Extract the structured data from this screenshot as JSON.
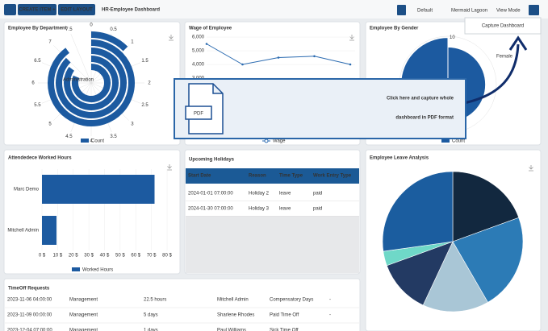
{
  "toolbar": {
    "create_item": "CREATE ITEM +",
    "edit_layout": "EDIT LAYOUT",
    "title": "HR-Employee Dashboard",
    "default": "Default",
    "theme": "Mermaid Lagoon",
    "view_mode": "View Mode",
    "capture": "Capture Dashboard"
  },
  "overlay": {
    "icon_label": "PDF",
    "lines": [
      "Click here and capture whole",
      "dashboard in PDF format"
    ]
  },
  "department_chart": {
    "type": "radialBar",
    "title": "Employee By Department",
    "label": "Administration",
    "rlim": [
      0,
      8
    ],
    "ticks": [
      0,
      0.5,
      1,
      1.5,
      2,
      2.5,
      3,
      3.5,
      4,
      4.5,
      5,
      5.5,
      6,
      6.5,
      7,
      7.5
    ],
    "values": [
      1,
      7.2,
      7,
      6.8,
      6.5
    ],
    "color": "#1c5aa0",
    "legend": "Count"
  },
  "wage_chart": {
    "type": "line",
    "title": "Wage of Employee",
    "ylim": [
      2000,
      6000
    ],
    "yticks": [
      {
        "value": 3000,
        "label": "3,000"
      },
      {
        "value": 4000,
        "label": "4,000"
      },
      {
        "value": 5000,
        "label": "5,000"
      },
      {
        "value": 6000,
        "label": "6,000"
      }
    ],
    "values": [
      5500,
      4000,
      4500,
      4600,
      4000
    ],
    "color": "#2a6ab0",
    "legend": "Wage"
  },
  "gender_chart": {
    "type": "polarArea",
    "title": "Employee By Gender",
    "categories": [
      null,
      "Female"
    ],
    "values": [
      10,
      8
    ],
    "rlim": [
      0,
      12
    ],
    "rticks": [
      10
    ],
    "color": "#1c5aa0",
    "legend": "Count"
  },
  "hours_chart": {
    "type": "barh",
    "title": "Attendedece Worked Hours",
    "categories": [
      "Marc Demo",
      "Mitchell Admin"
    ],
    "values": [
      72,
      9.3
    ],
    "xlim": [
      0,
      80
    ],
    "xticks": [
      {
        "value": 0,
        "label": "0 $"
      },
      {
        "value": 10,
        "label": "10 $"
      },
      {
        "value": 20,
        "label": "20 $"
      },
      {
        "value": 30,
        "label": "30 $"
      },
      {
        "value": 40,
        "label": "40 $"
      },
      {
        "value": 50,
        "label": "50 $"
      },
      {
        "value": 60,
        "label": "60 $"
      },
      {
        "value": 70,
        "label": "70 $"
      },
      {
        "value": 80,
        "label": "80 $"
      }
    ],
    "color": "#1c5aa0",
    "legend": "Worked Hours"
  },
  "holidays": {
    "title": "Upcoming Holidays",
    "columns": [
      "Start Date",
      "Reason",
      "Time Type",
      "Work Entry Type"
    ],
    "rows": [
      [
        "2024-01-01 07:00:00",
        "Holiday 2",
        "leave",
        "paid"
      ],
      [
        "2024-01-30 07:00:00",
        "Holiday 3",
        "leave",
        "paid"
      ]
    ]
  },
  "leave_chart": {
    "type": "pie",
    "title": "Employee Leave Analysis",
    "values": [
      70,
      80,
      55,
      45,
      12,
      98
    ],
    "colors": [
      "#12283f",
      "#2c7bb6",
      "#a9c6d6",
      "#233a63",
      "#6fd8c8",
      "#1b5d9f"
    ]
  },
  "timeoff": {
    "title": "TimeOff Requests",
    "rows": [
      [
        "2023-11-06 04:00:00",
        "Management",
        "22.5 hours",
        "Mitchell Admin",
        "Compensatory Days",
        "-"
      ],
      [
        "2023-11-09 00:00:00",
        "Management",
        "5 days",
        "Sharlene Rhodes",
        "Paid Time Off",
        "-"
      ],
      [
        "2023-12-04 07:00:00",
        "Management",
        "1 days",
        "Paul Williams",
        "Sick Time Off",
        null
      ]
    ]
  }
}
